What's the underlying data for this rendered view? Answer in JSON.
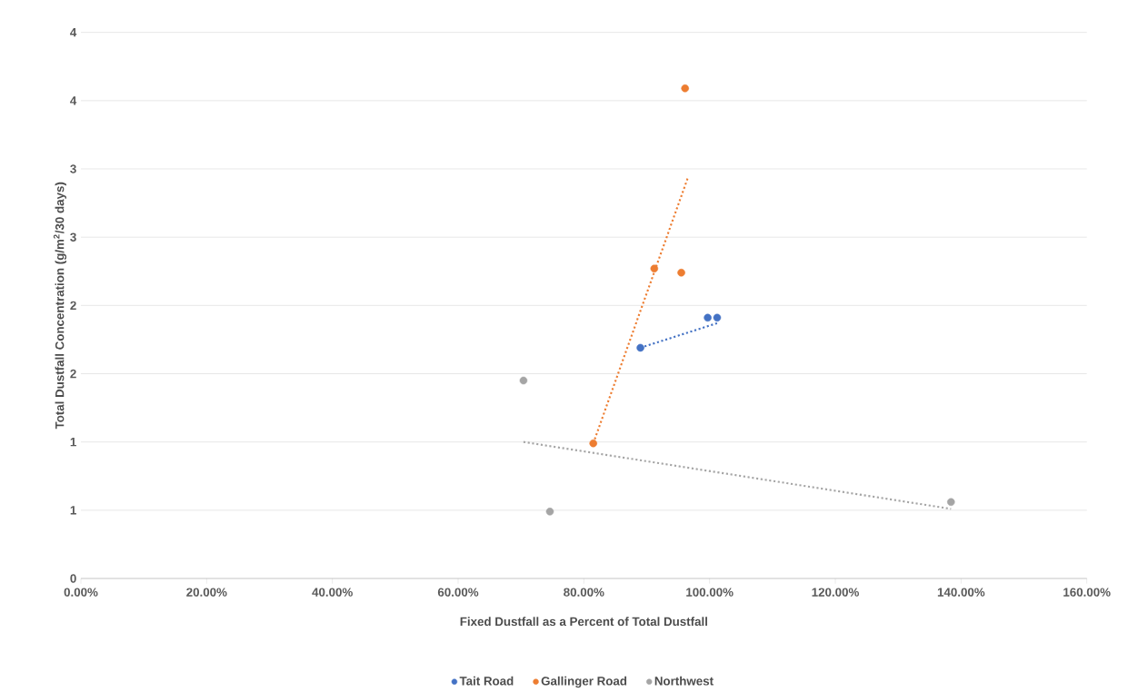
{
  "chart_data": {
    "type": "scatter",
    "xlabel": "Fixed Dustfall as a Percent of Total Dustfall",
    "ylabel": "Total Dustfall Concentration (g/m$^{2}$/30 days)",
    "xlim": [
      0,
      160
    ],
    "ylim": [
      0,
      4
    ],
    "xticks": [
      {
        "value": 0,
        "label": "0.00%"
      },
      {
        "value": 20,
        "label": "20.00%"
      },
      {
        "value": 40,
        "label": "40.00%"
      },
      {
        "value": 60,
        "label": "60.00%"
      },
      {
        "value": 80,
        "label": "80.00%"
      },
      {
        "value": 100,
        "label": "100.00%"
      },
      {
        "value": 120,
        "label": "120.00%"
      },
      {
        "value": 140,
        "label": "140.00%"
      },
      {
        "value": 160,
        "label": "160.00%"
      }
    ],
    "yticks": [
      0,
      {
        "value": 0.5,
        "label": "1"
      },
      1,
      {
        "value": 1.5,
        "label": "2"
      },
      2,
      {
        "value": 2.5,
        "label": "3"
      },
      3,
      {
        "value": 3.5,
        "label": "4"
      },
      4
    ],
    "grid": "y",
    "legend": "bottom",
    "marker": "circle",
    "series": [
      {
        "name": "Tait Road",
        "color": "#4472c4",
        "x": [
          89.0,
          99.7,
          101.2
        ],
        "values": [
          1.69,
          1.91,
          1.91
        ]
      },
      {
        "name": "Gallinger Road",
        "color": "#ed7d31",
        "x": [
          81.5,
          91.2,
          95.5,
          96.1
        ],
        "values": [
          0.99,
          2.27,
          2.24,
          3.59
        ]
      },
      {
        "name": "Northwest",
        "color": "#a5a5a5",
        "x": [
          70.4,
          74.6,
          138.4
        ],
        "values": [
          1.45,
          0.49,
          0.56
        ]
      },
      {
        "type": "line",
        "color": "#4472c4",
        "line_style": "dotted",
        "marker": "none",
        "x": [
          89.0,
          101.2
        ],
        "values": [
          1.69,
          1.87
        ]
      },
      {
        "type": "line",
        "color": "#ed7d31",
        "line_style": "dotted",
        "marker": "none",
        "x": [
          81.5,
          96.5
        ],
        "values": [
          0.99,
          2.93
        ]
      },
      {
        "type": "line",
        "color": "#a5a5a5",
        "line_style": "dotted",
        "marker": "none",
        "x": [
          70.4,
          138.4
        ],
        "values": [
          1.0,
          0.51
        ]
      }
    ]
  }
}
